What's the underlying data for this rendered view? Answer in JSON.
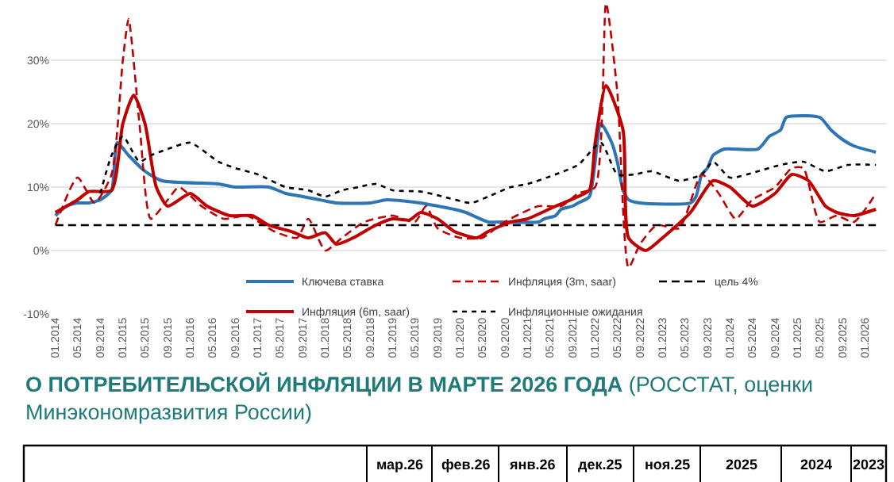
{
  "chart_data": {
    "type": "line",
    "legend": "bottom",
    "grid": "y",
    "xlim": [
      "2013-12-07",
      "2026-04-25"
    ],
    "ylim": [
      -10,
      39
    ],
    "yticks": [
      {
        "value": -10,
        "label": "-10%"
      },
      {
        "value": 0,
        "label": "0%"
      },
      {
        "value": 10,
        "label": "10%"
      },
      {
        "value": 20,
        "label": "20%"
      },
      {
        "value": 30,
        "label": "30%"
      }
    ],
    "xticks": [
      {
        "value": "2014-01",
        "label": "01.2014"
      },
      {
        "value": "2014-05",
        "label": "05.2014"
      },
      {
        "value": "2014-09",
        "label": "09.2014"
      },
      {
        "value": "2015-01",
        "label": "01.2015"
      },
      {
        "value": "2015-05",
        "label": "05.2015"
      },
      {
        "value": "2015-09",
        "label": "09.2015"
      },
      {
        "value": "2016-01",
        "label": "01.2016"
      },
      {
        "value": "2016-05",
        "label": "05.2016"
      },
      {
        "value": "2016-09",
        "label": "09.2016"
      },
      {
        "value": "2017-01",
        "label": "01.2017"
      },
      {
        "value": "2017-05",
        "label": "05.2017"
      },
      {
        "value": "2017-09",
        "label": "09.2017"
      },
      {
        "value": "2018-01",
        "label": "01.2018"
      },
      {
        "value": "2018-05",
        "label": "05.2018"
      },
      {
        "value": "2018-09",
        "label": "09.2018"
      },
      {
        "value": "2019-01",
        "label": "01.2019"
      },
      {
        "value": "2019-05",
        "label": "05.2019"
      },
      {
        "value": "2019-09",
        "label": "09.2019"
      },
      {
        "value": "2020-01",
        "label": "01.2020"
      },
      {
        "value": "2020-05",
        "label": "05.2020"
      },
      {
        "value": "2020-09",
        "label": "09.2020"
      },
      {
        "value": "2021-01",
        "label": "01.2021"
      },
      {
        "value": "2021-05",
        "label": "05.2021"
      },
      {
        "value": "2021-09",
        "label": "09.2021"
      },
      {
        "value": "2022-01",
        "label": "01.2022"
      },
      {
        "value": "2022-05",
        "label": "05.2022"
      },
      {
        "value": "2022-09",
        "label": "09.2022"
      },
      {
        "value": "2023-01",
        "label": "01.2023"
      },
      {
        "value": "2023-05",
        "label": "05.2023"
      },
      {
        "value": "2023-09",
        "label": "09.2023"
      },
      {
        "value": "2024-01",
        "label": "01.2024"
      },
      {
        "value": "2024-05",
        "label": "05.2024"
      },
      {
        "value": "2024-09",
        "label": "09.2024"
      },
      {
        "value": "2025-01",
        "label": "01.2025"
      },
      {
        "value": "2025-05",
        "label": "05.2025"
      },
      {
        "value": "2025-09",
        "label": "09.2025"
      },
      {
        "value": "2026-01",
        "label": "01.2026"
      }
    ],
    "series": [
      {
        "name": "Ключева ставка",
        "color": "#2e75b6",
        "line_style": "solid",
        "x": [
          "2014-01",
          "2014-03",
          "2014-05",
          "2014-07",
          "2014-09",
          "2014-11",
          "2014-12",
          "2015-02",
          "2015-05",
          "2015-08",
          "2016-06",
          "2016-09",
          "2017-03",
          "2017-06",
          "2017-09",
          "2017-12",
          "2018-03",
          "2018-09",
          "2018-12",
          "2019-06",
          "2019-09",
          "2019-12",
          "2020-02",
          "2020-06",
          "2020-08",
          "2021-03",
          "2021-04",
          "2021-06",
          "2021-07",
          "2021-09",
          "2021-10",
          "2021-12",
          "2022-02",
          "2022-04",
          "2022-05",
          "2022-06",
          "2022-07",
          "2022-09",
          "2023-06",
          "2023-07",
          "2023-08",
          "2023-09",
          "2023-10",
          "2023-12",
          "2024-06",
          "2024-08",
          "2024-10",
          "2024-11",
          "2025-05",
          "2025-07",
          "2025-09",
          "2025-11",
          "2026-03"
        ],
        "values": [
          5.5,
          7,
          7.5,
          7.5,
          8,
          9.5,
          17,
          15,
          12.5,
          11,
          10.5,
          10,
          10,
          9,
          8.5,
          8,
          7.5,
          7.5,
          8,
          7.5,
          7,
          6.5,
          6,
          4.5,
          4.5,
          4.5,
          5,
          5.5,
          6.5,
          7,
          7.5,
          8.5,
          20,
          17,
          14,
          9.5,
          8,
          7.5,
          7.5,
          8.5,
          12,
          13,
          15,
          16,
          16,
          18,
          19,
          21,
          21,
          19,
          17.5,
          16.5,
          15.5
        ]
      },
      {
        "name": "Инфляция (3m, saar)",
        "color": "#c00000",
        "line_style": "dashed",
        "x": [
          "2014-01",
          "2014-05",
          "2014-08",
          "2014-11",
          "2015-01",
          "2015-02",
          "2015-04",
          "2015-06",
          "2015-09",
          "2015-11",
          "2016-03",
          "2016-07",
          "2016-11",
          "2017-04",
          "2017-08",
          "2017-10",
          "2018-01",
          "2018-04",
          "2018-08",
          "2019-01",
          "2019-05",
          "2019-07",
          "2019-09",
          "2020-01",
          "2020-05",
          "2020-08",
          "2020-11",
          "2021-03",
          "2021-07",
          "2021-10",
          "2022-01",
          "2022-03",
          "2022-05",
          "2022-07",
          "2022-09",
          "2022-12",
          "2023-04",
          "2023-08",
          "2023-11",
          "2024-02",
          "2024-05",
          "2024-09",
          "2024-12",
          "2025-02",
          "2025-05",
          "2025-08",
          "2025-11",
          "2026-03"
        ],
        "values": [
          4,
          11.5,
          7.5,
          12,
          30,
          36.5,
          20,
          5,
          8,
          10,
          7,
          5,
          5.5,
          3,
          2,
          5,
          0,
          2,
          4.5,
          5.5,
          4.5,
          7,
          3.5,
          2,
          2,
          4,
          5.5,
          7,
          7,
          9,
          10,
          39,
          25,
          -2.7,
          1,
          4,
          3.5,
          12,
          9,
          5,
          8,
          10,
          13,
          13,
          4.5,
          5.5,
          4.5,
          9
        ]
      },
      {
        "name": "цель 4%",
        "color": "#000000",
        "line_style": "dashed",
        "x": [
          "2014-01",
          "2026-03"
        ],
        "values": [
          4,
          4
        ]
      },
      {
        "name": "Инфляция (6m, saar)",
        "color": "#c00000",
        "line_style": "solid",
        "x": [
          "2014-01",
          "2014-05",
          "2014-07",
          "2014-11",
          "2015-01",
          "2015-03",
          "2015-05",
          "2015-07",
          "2015-09",
          "2016-01",
          "2016-04",
          "2016-08",
          "2016-12",
          "2017-03",
          "2017-07",
          "2017-10",
          "2018-01",
          "2018-03",
          "2018-06",
          "2018-10",
          "2019-01",
          "2019-04",
          "2019-06",
          "2019-09",
          "2019-12",
          "2020-04",
          "2020-06",
          "2020-10",
          "2021-01",
          "2021-06",
          "2021-10",
          "2021-12",
          "2022-01",
          "2022-03",
          "2022-06",
          "2022-07",
          "2022-10",
          "2023-01",
          "2023-06",
          "2023-10",
          "2024-01",
          "2024-05",
          "2024-09",
          "2024-12",
          "2025-03",
          "2025-06",
          "2025-08",
          "2025-11",
          "2026-03"
        ],
        "values": [
          6,
          8,
          9.3,
          9.5,
          20,
          24.5,
          20,
          10,
          7,
          9,
          7,
          5.5,
          5.5,
          4,
          3,
          2,
          2.8,
          1,
          2,
          4,
          5,
          4.8,
          6,
          5,
          3,
          2,
          3,
          4.5,
          5,
          7,
          8.5,
          9.5,
          17,
          26,
          19,
          2,
          0,
          2,
          6,
          11,
          10,
          7,
          9,
          12,
          11,
          7,
          6,
          5.5,
          6.5
        ]
      },
      {
        "name": "Инфляционные ожидания",
        "color": "#000000",
        "line_style": "dotted",
        "x": [
          "2014-09",
          "2014-11",
          "2015-01",
          "2015-04",
          "2015-06",
          "2015-09",
          "2016-01",
          "2016-06",
          "2016-09",
          "2017-01",
          "2017-06",
          "2017-10",
          "2018-01",
          "2018-04",
          "2018-07",
          "2018-10",
          "2019-01",
          "2019-06",
          "2019-10",
          "2020-03",
          "2020-06",
          "2020-10",
          "2021-01",
          "2021-06",
          "2021-10",
          "2022-02",
          "2022-05",
          "2022-08",
          "2022-11",
          "2023-04",
          "2023-08",
          "2023-10",
          "2024-01",
          "2024-06",
          "2024-10",
          "2025-02",
          "2025-06",
          "2025-10",
          "2026-03"
        ],
        "values": [
          9,
          15,
          18,
          14,
          15,
          16,
          17,
          14,
          13,
          12,
          10,
          9.5,
          8.5,
          9.5,
          10,
          10.5,
          9.5,
          9.3,
          8.5,
          7.5,
          8.5,
          10,
          10.5,
          12,
          13.5,
          17,
          12,
          12,
          12.5,
          11,
          12,
          14,
          11.5,
          12.5,
          13.5,
          14,
          12.5,
          13.5,
          13.5
        ]
      }
    ],
    "annotations": [
      "О ПОТРЕБИТЕЛЬСКОЙ ИНФЛЯЦИИ В МАРТЕ 2026 ГОДА",
      "(РОССТАТ, оценки",
      "Минэкономразвития России)",
      "мар.26",
      "фев.26",
      "янв.26",
      "дек.25",
      "ноя.25",
      "2025",
      "2024",
      "2023"
    ]
  }
}
